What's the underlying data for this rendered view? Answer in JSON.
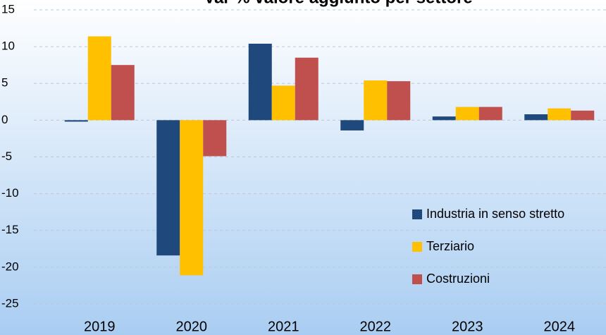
{
  "chart_data": {
    "type": "bar",
    "title": "Var % valore aggiunto per settore",
    "categories": [
      "2019",
      "2020",
      "2021",
      "2022",
      "2023",
      "2024"
    ],
    "series": [
      {
        "name": "Industria in senso stretto",
        "color": "#1f497d",
        "values": [
          -0.2,
          -18.4,
          10.4,
          -1.4,
          0.5,
          0.8
        ]
      },
      {
        "name": "Terziario",
        "color": "#ffc000",
        "values": [
          11.4,
          -21.1,
          4.7,
          5.4,
          1.8,
          1.6
        ]
      },
      {
        "name": "Costruzioni",
        "color": "#c0504d",
        "values": [
          7.5,
          -4.9,
          8.5,
          5.3,
          1.8,
          1.3
        ]
      }
    ],
    "ylim": [
      -25,
      15
    ],
    "yticks": [
      -25,
      -20,
      -15,
      -10,
      -5,
      0,
      5,
      10,
      15
    ],
    "grid": true,
    "legend": "right"
  }
}
